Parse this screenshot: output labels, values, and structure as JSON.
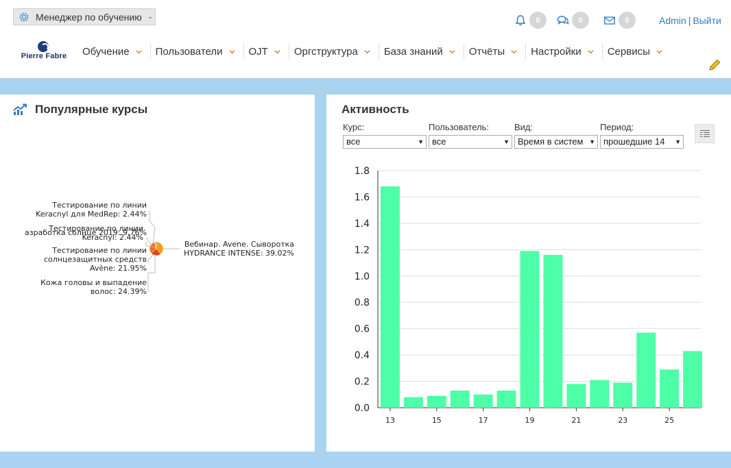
{
  "header": {
    "role_select": "Менеджер по обучению",
    "notifications_count": "0",
    "messages_count": "0",
    "mail_count": "0",
    "user": "Admin",
    "logout": "Выйти",
    "logo_text": "Pierre Fabre",
    "nav": [
      {
        "label": "Обучение"
      },
      {
        "label": "Пользователи"
      },
      {
        "label": "OJT"
      },
      {
        "label": "Оргструктура"
      },
      {
        "label": "База знаний"
      },
      {
        "label": "Отчёты"
      },
      {
        "label": "Настройки"
      },
      {
        "label": "Сервисы"
      }
    ],
    "icons": {
      "role": "gear-icon",
      "notifications": "bell-icon",
      "messages": "chat-icon",
      "mail": "envelope-icon",
      "edit": "pencil-icon",
      "nav_chevron": "chevron-down-icon"
    },
    "accent_color": "#e07b39",
    "link_color": "#2f7cc2"
  },
  "popular": {
    "title": "Популярные курсы",
    "chart_data": {
      "type": "pie",
      "slices": [
        {
          "label_lines": [
            "Вебинар. Avene. Сыворотка",
            "HYDRANCE INTENSE: 39.02%"
          ],
          "value": 39.02,
          "color": "#f0a010"
        },
        {
          "label_lines": [
            "Кожа головы и выпадение",
            "волос: 24.39%"
          ],
          "value": 24.39,
          "color": "#e04818"
        },
        {
          "label_lines": [
            "Тестирование по линии",
            "солнцезащитных средств",
            "Avène: 21.95%"
          ],
          "value": 21.95,
          "color": "#f07020"
        },
        {
          "label_lines": [
            "азработка солнце 2019: 9.76%"
          ],
          "value": 9.76,
          "color": "#f05818"
        },
        {
          "label_lines": [
            "Тестирование по линии",
            "Keracnyl: 2.44%"
          ],
          "value": 2.44,
          "color": "#e8c830"
        },
        {
          "label_lines": [
            "Тестирование по линии",
            "Keracnyl для MedRep: 2.44%"
          ],
          "value": 2.44,
          "color": "#c83010"
        }
      ]
    }
  },
  "activity": {
    "title": "Активность",
    "filters": [
      {
        "label": "Курс:",
        "value": "все"
      },
      {
        "label": "Пользователь:",
        "value": "все"
      },
      {
        "label": "Вид:",
        "value": "Время в систем"
      },
      {
        "label": "Период:",
        "value": "прошедшие 14"
      }
    ],
    "menu_icon": "list-menu-icon",
    "chart_data": {
      "type": "bar",
      "x": [
        13,
        14,
        15,
        16,
        17,
        18,
        19,
        20,
        21,
        22,
        23,
        24,
        25,
        26
      ],
      "values": [
        1.68,
        0.08,
        0.09,
        0.13,
        0.1,
        0.13,
        1.19,
        1.16,
        0.18,
        0.21,
        0.19,
        0.57,
        0.29,
        0.43
      ],
      "xticks": [
        "13",
        "15",
        "17",
        "19",
        "21",
        "23",
        "25"
      ],
      "yticks": [
        "0.0",
        "0.2",
        "0.4",
        "0.6",
        "0.8",
        "1.0",
        "1.2",
        "1.4",
        "1.6",
        "1.8"
      ],
      "ylim": [
        0,
        1.8
      ],
      "bar_color": "#4dffa6",
      "grid": true
    }
  }
}
